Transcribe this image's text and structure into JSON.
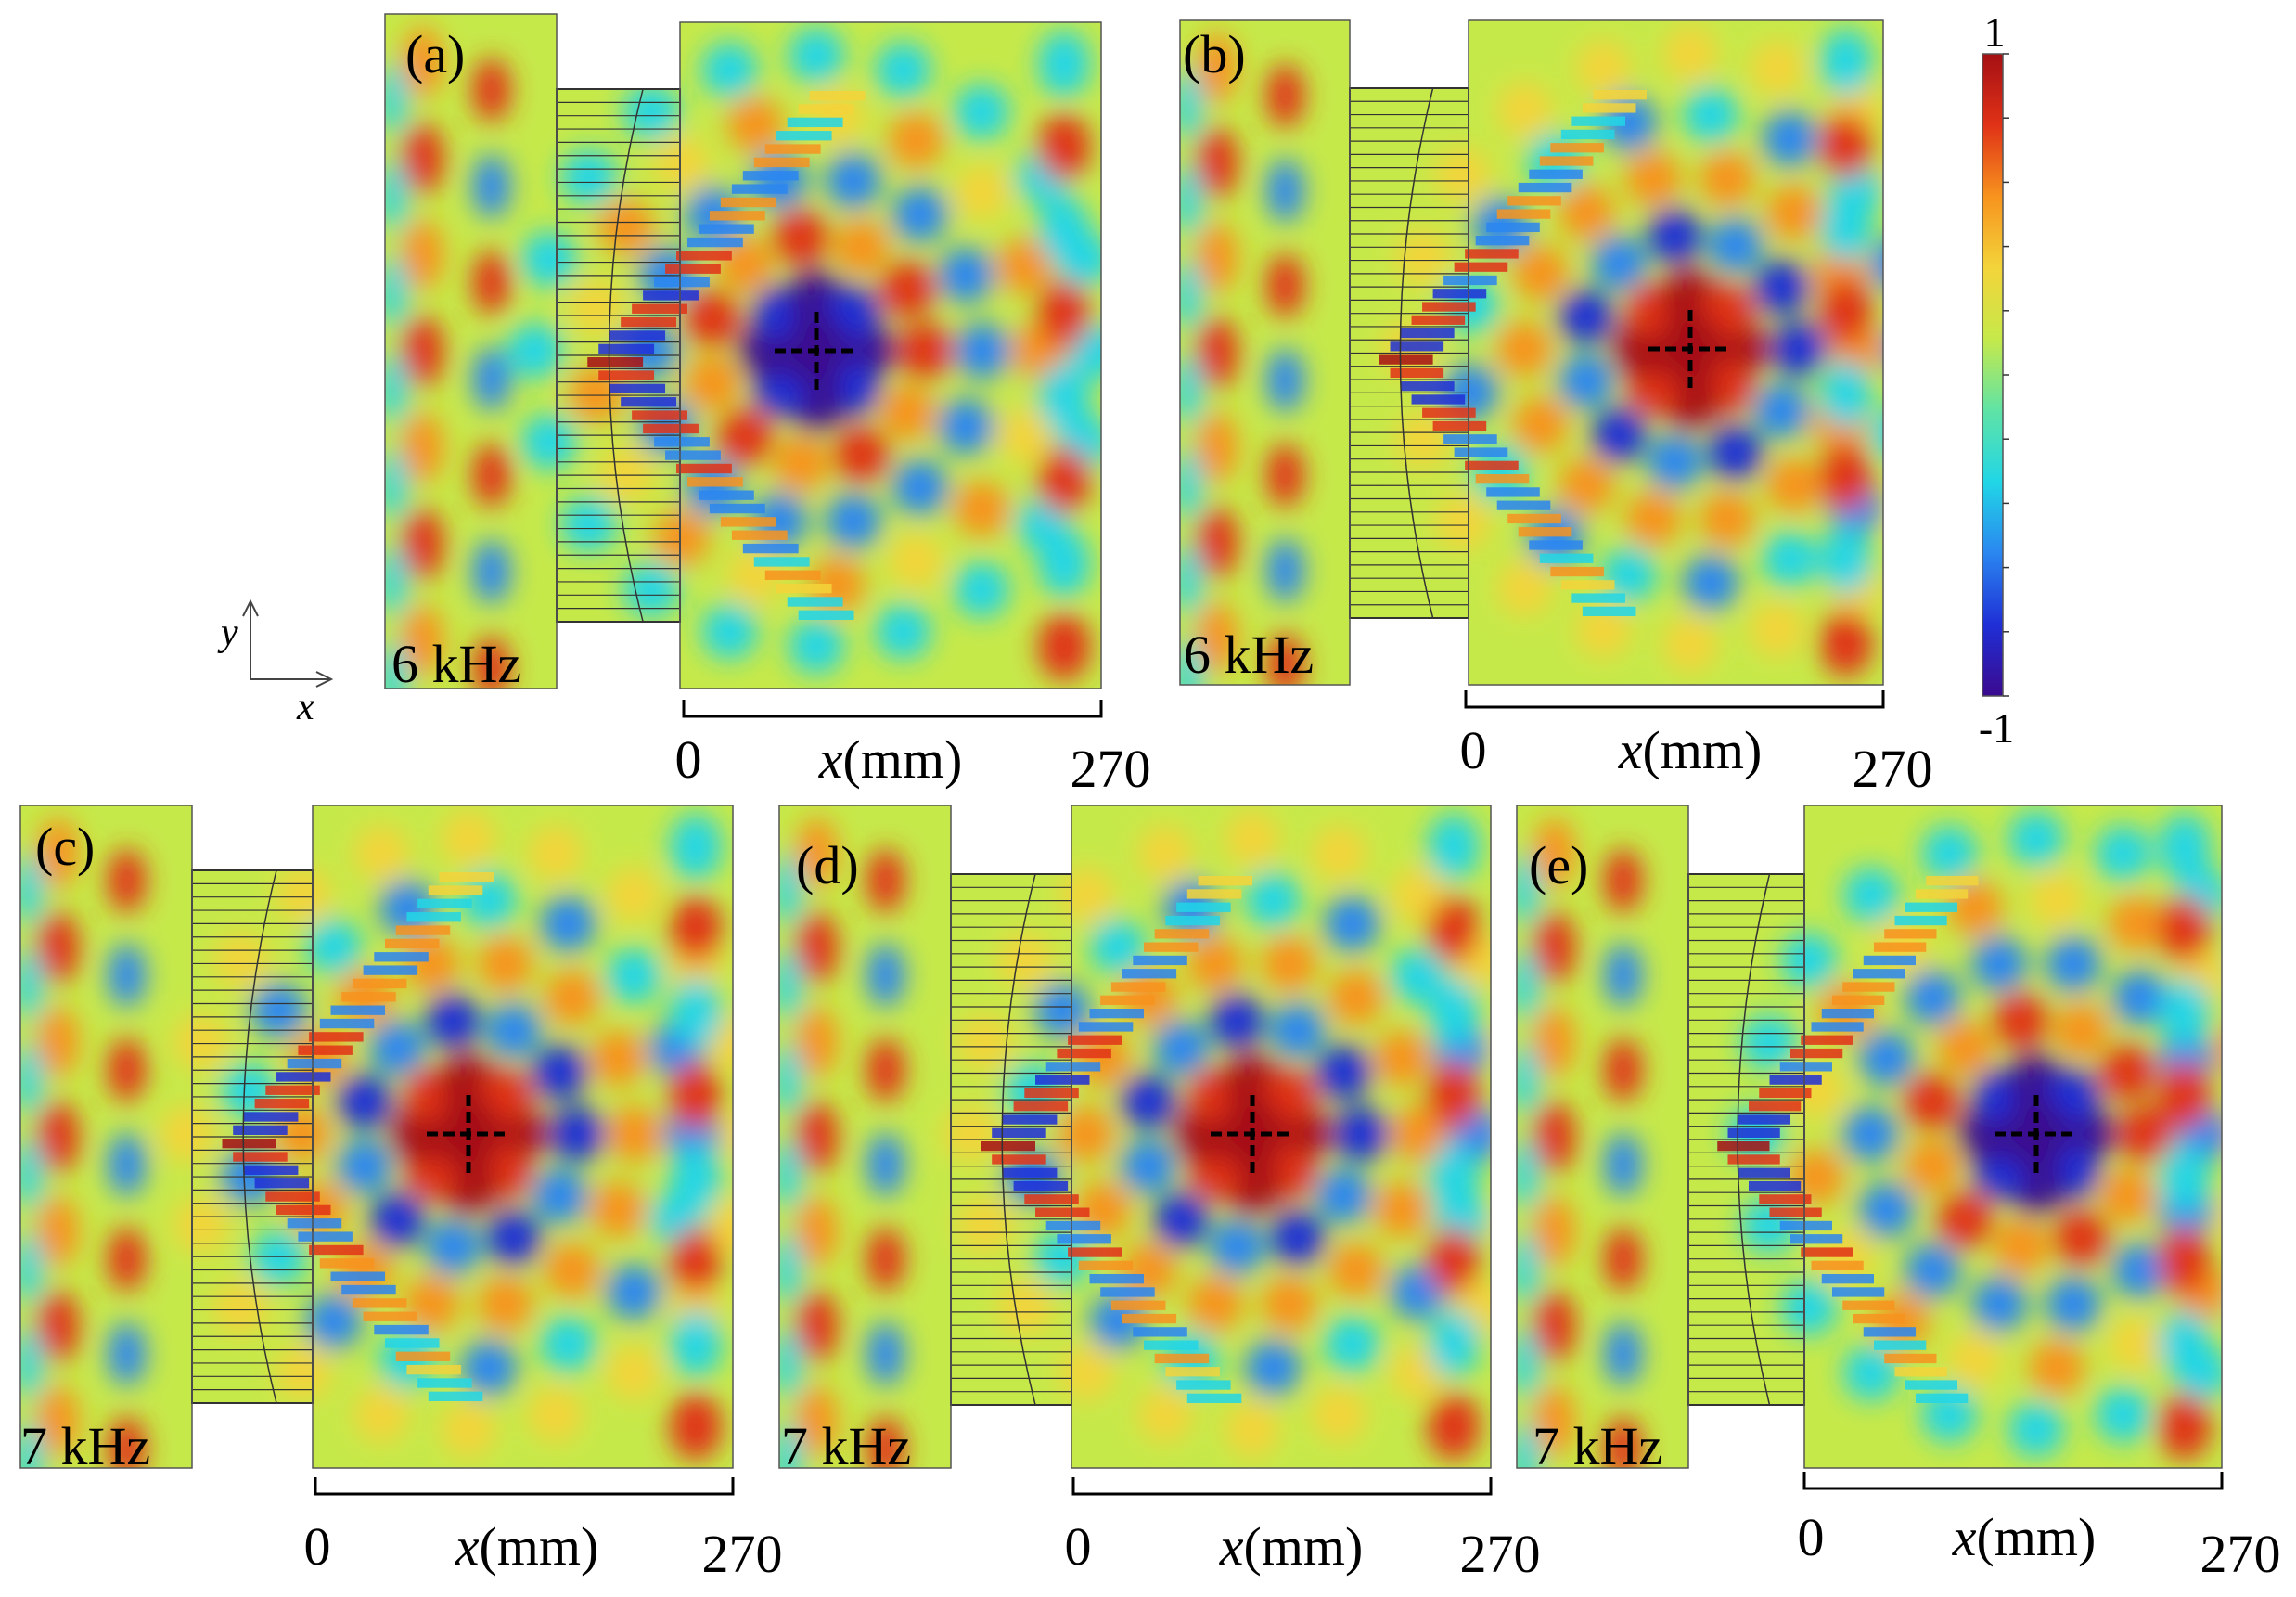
{
  "panels": [
    {
      "id": "a",
      "label": "(a)",
      "freq": "6 kHz",
      "axis_start": "0",
      "axis_label": "x",
      "axis_unit": "(mm)",
      "axis_end": "270",
      "focus_value": -1
    },
    {
      "id": "b",
      "label": "(b)",
      "freq": "6 kHz",
      "axis_start": "0",
      "axis_label": "x",
      "axis_unit": "(mm)",
      "axis_end": "270",
      "focus_value": 1
    },
    {
      "id": "c",
      "label": "(c)",
      "freq": "7 kHz",
      "axis_start": "0",
      "axis_label": "x",
      "axis_unit": "(mm)",
      "axis_end": "270",
      "focus_value": 1
    },
    {
      "id": "d",
      "label": "(d)",
      "freq": "7 kHz",
      "axis_start": "0",
      "axis_label": "x",
      "axis_unit": "(mm)",
      "axis_end": "270",
      "focus_value": 1
    },
    {
      "id": "e",
      "label": "(e)",
      "freq": "7 kHz",
      "axis_start": "0",
      "axis_label": "x",
      "axis_unit": "(mm)",
      "axis_end": "270",
      "focus_value": -1
    }
  ],
  "colorbar": {
    "max_label": "1",
    "min_label": "-1",
    "range": [
      -1,
      1
    ],
    "colors": [
      "#3b0a8f",
      "#1f2fd6",
      "#2a86f0",
      "#21d6e6",
      "#5fe3a6",
      "#c6e94a",
      "#f3d43a",
      "#f7931e",
      "#e03217",
      "#a50f14"
    ]
  },
  "axes_indicator": {
    "y": "y",
    "x": "x"
  }
}
